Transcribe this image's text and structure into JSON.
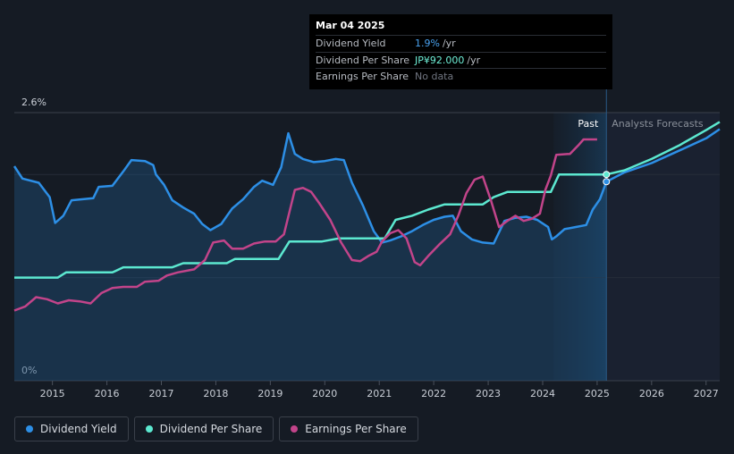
{
  "tooltip": {
    "date": "Mar 04 2025",
    "rows": [
      {
        "label": "Dividend Yield",
        "value": "1.9%",
        "unit": "/yr"
      },
      {
        "label": "Dividend Per Share",
        "value": "JP¥92.000",
        "unit": "/yr"
      },
      {
        "label": "Earnings Per Share",
        "value": "No data",
        "unit": ""
      }
    ]
  },
  "legend": [
    {
      "label": "Dividend Yield",
      "color": "#2d8fe6"
    },
    {
      "label": "Dividend Per Share",
      "color": "#5ce8d0"
    },
    {
      "label": "Earnings Per Share",
      "color": "#c2448a"
    }
  ],
  "chart_data": {
    "type": "line",
    "y_tick_labels": [
      "2.6%",
      "0%"
    ],
    "ylim": [
      0,
      2.6
    ],
    "xlim": [
      2014.3,
      2027.25
    ],
    "x_ticks": [
      2015,
      2016,
      2017,
      2018,
      2019,
      2020,
      2021,
      2022,
      2023,
      2024,
      2025,
      2026,
      2027
    ],
    "past_label": "Past",
    "forecast_label": "Analysts Forecasts",
    "past_region_start": 2024.2,
    "divider_x": 2025.17,
    "series": [
      {
        "name": "Dividend Yield",
        "color": "#2d8fe6",
        "fill": true,
        "dashed_from": 2025.17,
        "points": [
          [
            2014.3,
            2.08
          ],
          [
            2014.45,
            1.96
          ],
          [
            2014.75,
            1.92
          ],
          [
            2014.95,
            1.78
          ],
          [
            2015.05,
            1.53
          ],
          [
            2015.2,
            1.6
          ],
          [
            2015.35,
            1.75
          ],
          [
            2015.75,
            1.77
          ],
          [
            2015.85,
            1.88
          ],
          [
            2016.1,
            1.89
          ],
          [
            2016.3,
            2.03
          ],
          [
            2016.45,
            2.14
          ],
          [
            2016.7,
            2.13
          ],
          [
            2016.85,
            2.09
          ],
          [
            2016.9,
            2.0
          ],
          [
            2017.05,
            1.9
          ],
          [
            2017.2,
            1.75
          ],
          [
            2017.4,
            1.68
          ],
          [
            2017.6,
            1.62
          ],
          [
            2017.75,
            1.52
          ],
          [
            2017.9,
            1.46
          ],
          [
            2018.1,
            1.52
          ],
          [
            2018.3,
            1.67
          ],
          [
            2018.5,
            1.76
          ],
          [
            2018.7,
            1.88
          ],
          [
            2018.85,
            1.94
          ],
          [
            2019.05,
            1.9
          ],
          [
            2019.2,
            2.07
          ],
          [
            2019.33,
            2.4
          ],
          [
            2019.45,
            2.2
          ],
          [
            2019.6,
            2.15
          ],
          [
            2019.8,
            2.12
          ],
          [
            2020.0,
            2.13
          ],
          [
            2020.2,
            2.15
          ],
          [
            2020.35,
            2.14
          ],
          [
            2020.5,
            1.92
          ],
          [
            2020.7,
            1.7
          ],
          [
            2020.9,
            1.45
          ],
          [
            2021.05,
            1.34
          ],
          [
            2021.2,
            1.36
          ],
          [
            2021.4,
            1.4
          ],
          [
            2021.6,
            1.45
          ],
          [
            2021.8,
            1.51
          ],
          [
            2022.0,
            1.56
          ],
          [
            2022.2,
            1.59
          ],
          [
            2022.35,
            1.6
          ],
          [
            2022.5,
            1.45
          ],
          [
            2022.7,
            1.37
          ],
          [
            2022.9,
            1.34
          ],
          [
            2023.1,
            1.33
          ],
          [
            2023.3,
            1.55
          ],
          [
            2023.5,
            1.58
          ],
          [
            2023.7,
            1.59
          ],
          [
            2023.9,
            1.56
          ],
          [
            2024.1,
            1.49
          ],
          [
            2024.17,
            1.37
          ],
          [
            2024.25,
            1.4
          ],
          [
            2024.4,
            1.47
          ],
          [
            2024.6,
            1.49
          ],
          [
            2024.8,
            1.51
          ],
          [
            2024.92,
            1.66
          ],
          [
            2025.05,
            1.76
          ],
          [
            2025.17,
            1.93
          ],
          [
            2025.5,
            2.02
          ],
          [
            2026.0,
            2.11
          ],
          [
            2026.5,
            2.23
          ],
          [
            2027.0,
            2.35
          ],
          [
            2027.25,
            2.44
          ]
        ]
      },
      {
        "name": "Dividend Per Share",
        "color": "#5ce8d0",
        "fill": false,
        "dashed_from": 2025.17,
        "points": [
          [
            2014.3,
            1.0
          ],
          [
            2015.1,
            1.0
          ],
          [
            2015.25,
            1.05
          ],
          [
            2016.1,
            1.05
          ],
          [
            2016.3,
            1.1
          ],
          [
            2017.2,
            1.1
          ],
          [
            2017.4,
            1.14
          ],
          [
            2018.2,
            1.14
          ],
          [
            2018.35,
            1.18
          ],
          [
            2019.15,
            1.18
          ],
          [
            2019.35,
            1.35
          ],
          [
            2019.95,
            1.35
          ],
          [
            2020.25,
            1.38
          ],
          [
            2021.1,
            1.38
          ],
          [
            2021.3,
            1.56
          ],
          [
            2021.6,
            1.6
          ],
          [
            2021.9,
            1.66
          ],
          [
            2022.2,
            1.71
          ],
          [
            2022.9,
            1.71
          ],
          [
            2023.1,
            1.78
          ],
          [
            2023.35,
            1.83
          ],
          [
            2024.15,
            1.83
          ],
          [
            2024.3,
            2.0
          ],
          [
            2025.17,
            2.0
          ],
          [
            2025.5,
            2.04
          ],
          [
            2026.0,
            2.15
          ],
          [
            2026.5,
            2.28
          ],
          [
            2027.0,
            2.43
          ],
          [
            2027.25,
            2.51
          ]
        ]
      },
      {
        "name": "Earnings Per Share",
        "color": "#c2448a",
        "fill": false,
        "points": [
          [
            2014.3,
            0.68
          ],
          [
            2014.5,
            0.72
          ],
          [
            2014.7,
            0.81
          ],
          [
            2014.9,
            0.79
          ],
          [
            2015.1,
            0.75
          ],
          [
            2015.3,
            0.78
          ],
          [
            2015.5,
            0.77
          ],
          [
            2015.7,
            0.75
          ],
          [
            2015.9,
            0.85
          ],
          [
            2016.1,
            0.9
          ],
          [
            2016.3,
            0.91
          ],
          [
            2016.55,
            0.91
          ],
          [
            2016.7,
            0.96
          ],
          [
            2016.95,
            0.97
          ],
          [
            2017.1,
            1.02
          ],
          [
            2017.3,
            1.05
          ],
          [
            2017.6,
            1.08
          ],
          [
            2017.8,
            1.17
          ],
          [
            2017.95,
            1.34
          ],
          [
            2018.15,
            1.36
          ],
          [
            2018.3,
            1.28
          ],
          [
            2018.5,
            1.28
          ],
          [
            2018.7,
            1.33
          ],
          [
            2018.9,
            1.35
          ],
          [
            2019.1,
            1.35
          ],
          [
            2019.25,
            1.42
          ],
          [
            2019.45,
            1.85
          ],
          [
            2019.6,
            1.87
          ],
          [
            2019.75,
            1.83
          ],
          [
            2019.9,
            1.72
          ],
          [
            2020.1,
            1.56
          ],
          [
            2020.3,
            1.34
          ],
          [
            2020.5,
            1.17
          ],
          [
            2020.65,
            1.16
          ],
          [
            2020.8,
            1.21
          ],
          [
            2020.95,
            1.25
          ],
          [
            2021.05,
            1.35
          ],
          [
            2021.2,
            1.43
          ],
          [
            2021.35,
            1.46
          ],
          [
            2021.5,
            1.38
          ],
          [
            2021.65,
            1.15
          ],
          [
            2021.75,
            1.12
          ],
          [
            2021.9,
            1.21
          ],
          [
            2022.1,
            1.32
          ],
          [
            2022.3,
            1.42
          ],
          [
            2022.45,
            1.6
          ],
          [
            2022.6,
            1.82
          ],
          [
            2022.75,
            1.95
          ],
          [
            2022.9,
            1.98
          ],
          [
            2023.05,
            1.75
          ],
          [
            2023.2,
            1.49
          ],
          [
            2023.35,
            1.55
          ],
          [
            2023.5,
            1.6
          ],
          [
            2023.65,
            1.55
          ],
          [
            2023.8,
            1.57
          ],
          [
            2023.95,
            1.62
          ],
          [
            2024.05,
            1.85
          ],
          [
            2024.15,
            1.99
          ],
          [
            2024.25,
            2.19
          ],
          [
            2024.5,
            2.2
          ],
          [
            2024.65,
            2.28
          ],
          [
            2024.75,
            2.34
          ],
          [
            2025.0,
            2.34
          ]
        ]
      }
    ]
  }
}
